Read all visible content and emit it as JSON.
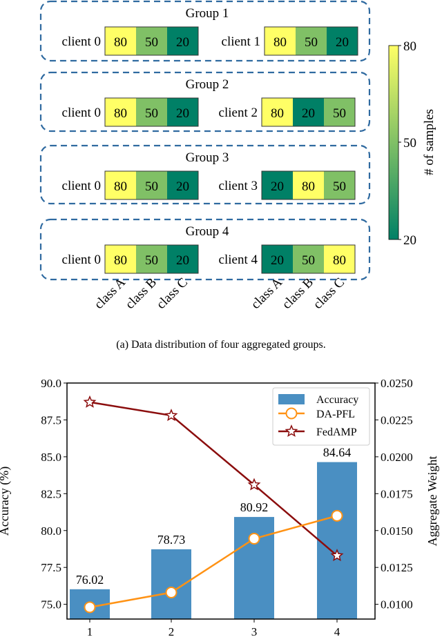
{
  "chart_data": [
    {
      "type": "heatmap",
      "caption": "(a)  Data distribution of four aggregated groups.",
      "groups": [
        {
          "title": "Group 1",
          "clients": [
            {
              "label": "client 0",
              "values": [
                80,
                50,
                20
              ]
            },
            {
              "label": "client 1",
              "values": [
                80,
                50,
                20
              ]
            }
          ]
        },
        {
          "title": "Group 2",
          "clients": [
            {
              "label": "client 0",
              "values": [
                80,
                50,
                20
              ]
            },
            {
              "label": "client 2",
              "values": [
                80,
                20,
                50
              ]
            }
          ]
        },
        {
          "title": "Group 3",
          "clients": [
            {
              "label": "client 0",
              "values": [
                80,
                50,
                20
              ]
            },
            {
              "label": "client 3",
              "values": [
                20,
                80,
                50
              ]
            }
          ]
        },
        {
          "title": "Group 4",
          "clients": [
            {
              "label": "client 0",
              "values": [
                80,
                50,
                20
              ]
            },
            {
              "label": "client 4",
              "values": [
                20,
                50,
                80
              ]
            }
          ]
        }
      ],
      "columns": [
        "class A",
        "class B",
        "class C"
      ],
      "colorbar": {
        "label": "# of samples",
        "ticks": [
          "80",
          "50",
          "20"
        ],
        "range": [
          20,
          80
        ],
        "colors": {
          "low": "#008066",
          "mid": "#80c066",
          "high": "#ffff66"
        }
      },
      "group_border_color": "#2f6aa0"
    },
    {
      "type": "bar",
      "categories": [
        "1",
        "2",
        "3",
        "4"
      ],
      "ylabel": "Accuracy (%)",
      "y2label": "Aggregate Weight",
      "ylim": [
        74.0,
        90.0
      ],
      "y2lim": [
        0.009,
        0.025
      ],
      "yticks": [
        "75.0",
        "77.5",
        "80.0",
        "82.5",
        "85.0",
        "87.5",
        "90.0"
      ],
      "y2ticks": [
        "0.0100",
        "0.0125",
        "0.0150",
        "0.0175",
        "0.0200",
        "0.0225",
        "0.0250"
      ],
      "series": [
        {
          "name": "Accuracy",
          "kind": "bar",
          "axis": "left",
          "values": [
            76.02,
            78.73,
            80.92,
            84.64
          ],
          "labels": [
            "76.02",
            "78.73",
            "80.92",
            "84.64"
          ],
          "color": "#4a8fc2"
        },
        {
          "name": "DA-PFL",
          "kind": "line",
          "marker": "circle",
          "axis": "right",
          "values": [
            0.0098,
            0.0108,
            0.01445,
            0.016
          ],
          "color": "#ff9214"
        },
        {
          "name": "FedAMP",
          "kind": "line",
          "marker": "star",
          "axis": "right",
          "values": [
            0.0237,
            0.0228,
            0.0181,
            0.0133
          ],
          "color": "#8b0d0d"
        }
      ],
      "legend": "top-right"
    }
  ]
}
